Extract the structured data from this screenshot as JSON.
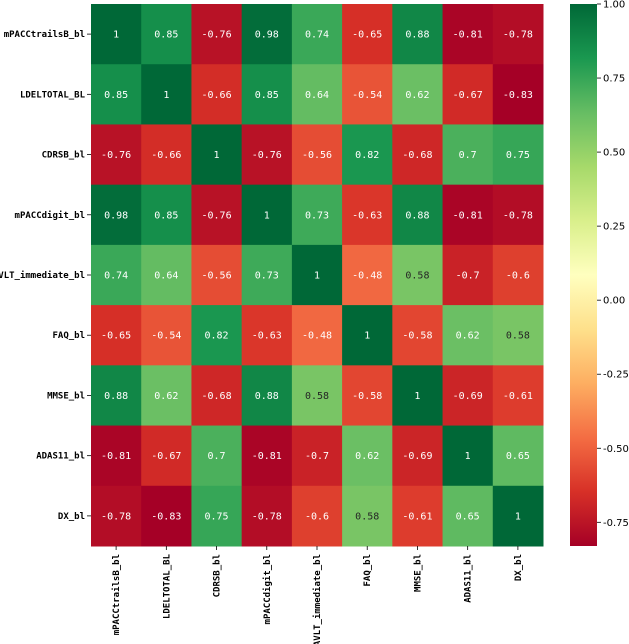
{
  "chart_data": {
    "type": "heatmap",
    "labels": [
      "mPACCtrailsB_bl",
      "LDELTOTAL_BL",
      "CDRSB_bl",
      "mPACCdigit_bl",
      "RAVLT_immediate_bl",
      "FAQ_bl",
      "MMSE_bl",
      "ADAS11_bl",
      "DX_bl"
    ],
    "values": [
      [
        1,
        0.85,
        -0.76,
        0.98,
        0.74,
        -0.65,
        0.88,
        -0.81,
        -0.78
      ],
      [
        0.85,
        1,
        -0.66,
        0.85,
        0.64,
        -0.54,
        0.62,
        -0.67,
        -0.83
      ],
      [
        -0.76,
        -0.66,
        1,
        -0.76,
        -0.56,
        0.82,
        -0.68,
        0.7,
        0.75
      ],
      [
        0.98,
        0.85,
        -0.76,
        1,
        0.73,
        -0.63,
        0.88,
        -0.81,
        -0.78
      ],
      [
        0.74,
        0.64,
        -0.56,
        0.73,
        1,
        -0.48,
        0.58,
        -0.7,
        -0.6
      ],
      [
        -0.65,
        -0.54,
        0.82,
        -0.63,
        -0.48,
        1,
        -0.58,
        0.62,
        0.58
      ],
      [
        0.88,
        0.62,
        -0.68,
        0.88,
        0.58,
        -0.58,
        1,
        -0.69,
        -0.61
      ],
      [
        -0.81,
        -0.67,
        0.7,
        -0.81,
        -0.7,
        0.62,
        -0.69,
        1,
        0.65
      ],
      [
        -0.78,
        -0.83,
        0.75,
        -0.78,
        -0.6,
        0.58,
        -0.61,
        0.65,
        1
      ]
    ],
    "colormap": "RdYlGn",
    "vmin": -0.83,
    "vmax": 1.0,
    "annotated": true,
    "colorbar": {
      "ticks": [
        1.0,
        0.75,
        0.5,
        0.25,
        0.0,
        -0.25,
        -0.5,
        -0.75
      ],
      "tick_labels": [
        "1.00",
        "0.75",
        "0.50",
        "0.25",
        "0.00",
        "-0.25",
        "-0.50",
        "-0.75"
      ],
      "placement": "right"
    }
  }
}
